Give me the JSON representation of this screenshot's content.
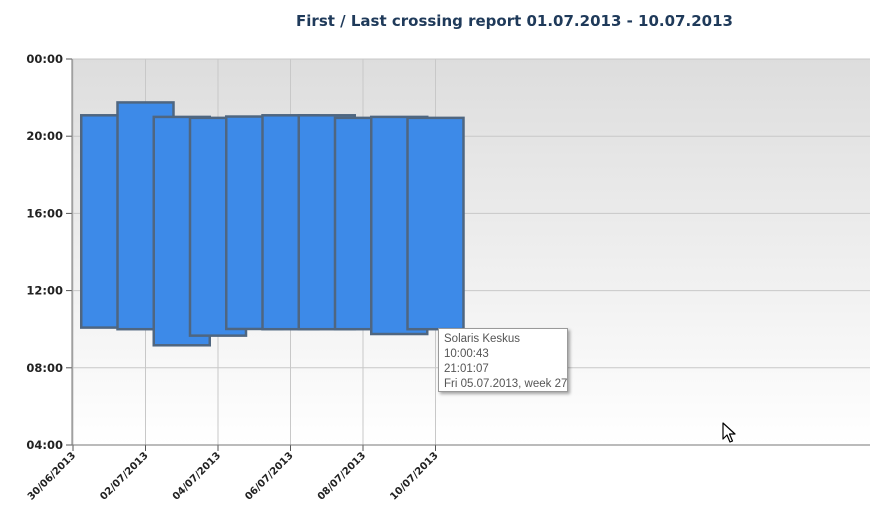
{
  "chart_data": {
    "type": "floating-bar",
    "title": "First / Last crossing report 01.07.2013 - 10.07.2013",
    "y_ticks": [
      "00:00",
      "20:00",
      "16:00",
      "12:00",
      "08:00",
      "04:00"
    ],
    "x_ticks": [
      "30/06/2013",
      "02/07/2013",
      "04/07/2013",
      "06/07/2013",
      "08/07/2013",
      "10/07/2013"
    ],
    "x_tick_dates": [
      "2013-06-30",
      "2013-07-02",
      "2013-07-04",
      "2013-07-06",
      "2013-07-08",
      "2013-07-10"
    ],
    "ylim_hours": [
      4,
      24
    ],
    "grid": true,
    "bar_color": "#3d8ae8",
    "bar_border_color": "#4f6680",
    "bars": [
      {
        "date": "2013-07-01",
        "first": "10:05",
        "last": "21:05"
      },
      {
        "date": "2013-07-02",
        "first": "10:00",
        "last": "21:45"
      },
      {
        "date": "2013-07-03",
        "first": "09:10",
        "last": "21:00"
      },
      {
        "date": "2013-07-04",
        "first": "09:40",
        "last": "20:57"
      },
      {
        "date": "2013-07-05",
        "first": "10:00:43",
        "last": "21:01:07"
      },
      {
        "date": "2013-07-06",
        "first": "10:00",
        "last": "21:05"
      },
      {
        "date": "2013-07-07",
        "first": "10:00",
        "last": "21:05"
      },
      {
        "date": "2013-07-08",
        "first": "10:00",
        "last": "20:57"
      },
      {
        "date": "2013-07-09",
        "first": "09:45",
        "last": "21:00"
      },
      {
        "date": "2013-07-10",
        "first": "10:00",
        "last": "20:57"
      }
    ]
  },
  "tooltip": {
    "name": "Solaris Keskus",
    "first": "10:00:43",
    "last": "21:01:07",
    "date_line": "Fri 05.07.2013, week 27"
  }
}
